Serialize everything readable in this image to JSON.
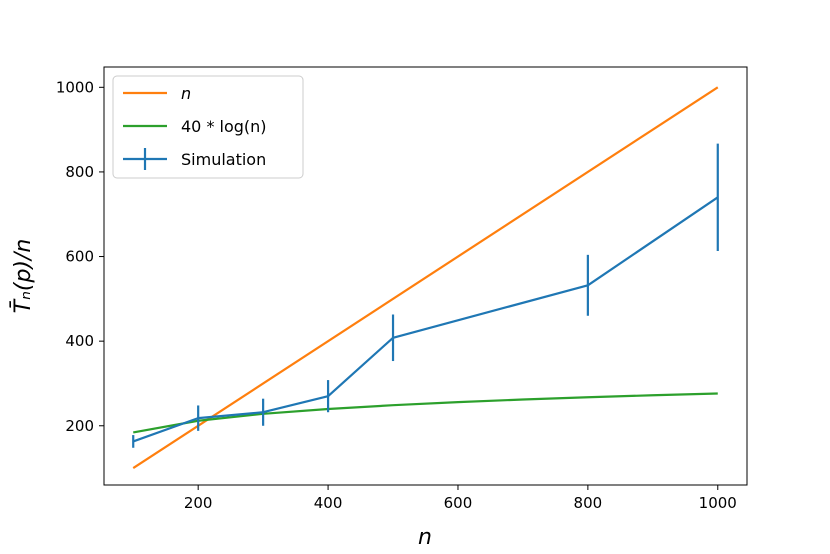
{
  "chart_data": {
    "type": "line",
    "xlabel": "n",
    "ylabel": "T̄ₙ(p)/n",
    "xlim": [
      55,
      1045
    ],
    "ylim": [
      60,
      1048
    ],
    "xticks": [
      200,
      400,
      600,
      800,
      1000
    ],
    "yticks": [
      200,
      400,
      600,
      800,
      1000
    ],
    "grid": false,
    "legend_position": "top-left",
    "series": [
      {
        "name": "n",
        "legend_label": "n",
        "color": "#ff7f0e",
        "x": [
          100,
          1000
        ],
        "y": [
          100,
          1000
        ]
      },
      {
        "name": "40*log(n)",
        "legend_label": "40 * log(n)",
        "color": "#2ca02c",
        "x": [
          100,
          200,
          300,
          400,
          500,
          600,
          700,
          800,
          900,
          1000
        ],
        "y": [
          184.2,
          211.9,
          228.2,
          239.7,
          248.6,
          255.9,
          262.1,
          267.4,
          272.1,
          276.3
        ]
      },
      {
        "name": "Simulation",
        "legend_label": "Simulation",
        "color": "#1f77b4",
        "x": [
          100,
          200,
          300,
          400,
          500,
          800,
          1000
        ],
        "y": [
          163,
          218,
          232,
          270,
          408,
          532,
          740
        ],
        "yerr": [
          15,
          30,
          32,
          38,
          55,
          72,
          127
        ]
      }
    ]
  }
}
